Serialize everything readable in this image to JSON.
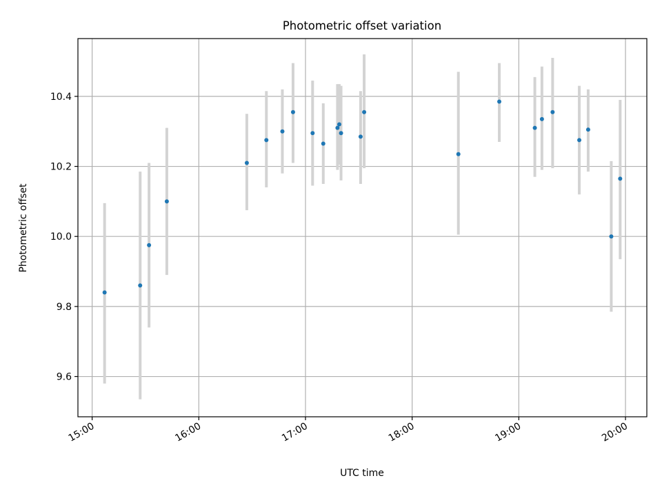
{
  "chart_data": {
    "type": "scatter",
    "title": "Photometric offset variation",
    "xlabel": "UTC time",
    "ylabel": "Photometric offset",
    "x_ticks": [
      "15:00",
      "16:00",
      "17:00",
      "18:00",
      "19:00",
      "20:00"
    ],
    "y_ticks": [
      "9.6",
      "9.8",
      "10.0",
      "10.2",
      "10.4"
    ],
    "xlim": [
      "14:52",
      "20:12"
    ],
    "ylim": [
      9.485,
      10.565
    ],
    "grid": true,
    "colors": {
      "point": "#1f77b4",
      "errorbar": "#d3d3d3"
    },
    "points": [
      {
        "x": "15:07",
        "y": 9.84,
        "ylow": 9.58,
        "yhigh": 10.095
      },
      {
        "x": "15:27",
        "y": 9.86,
        "ylow": 9.535,
        "yhigh": 10.185
      },
      {
        "x": "15:32",
        "y": 9.975,
        "ylow": 9.74,
        "yhigh": 10.21
      },
      {
        "x": "15:42",
        "y": 10.1,
        "ylow": 9.89,
        "yhigh": 10.31
      },
      {
        "x": "16:27",
        "y": 10.21,
        "ylow": 10.075,
        "yhigh": 10.35
      },
      {
        "x": "16:38",
        "y": 10.275,
        "ylow": 10.14,
        "yhigh": 10.415
      },
      {
        "x": "16:47",
        "y": 10.3,
        "ylow": 10.18,
        "yhigh": 10.42
      },
      {
        "x": "16:53",
        "y": 10.355,
        "ylow": 10.21,
        "yhigh": 10.495
      },
      {
        "x": "17:04",
        "y": 10.295,
        "ylow": 10.145,
        "yhigh": 10.445
      },
      {
        "x": "17:10",
        "y": 10.265,
        "ylow": 10.15,
        "yhigh": 10.38
      },
      {
        "x": "17:18",
        "y": 10.31,
        "ylow": 10.19,
        "yhigh": 10.435
      },
      {
        "x": "17:19",
        "y": 10.32,
        "ylow": 10.205,
        "yhigh": 10.435
      },
      {
        "x": "17:20",
        "y": 10.295,
        "ylow": 10.16,
        "yhigh": 10.43
      },
      {
        "x": "17:31",
        "y": 10.285,
        "ylow": 10.15,
        "yhigh": 10.415
      },
      {
        "x": "17:33",
        "y": 10.355,
        "ylow": 10.195,
        "yhigh": 10.52
      },
      {
        "x": "18:26",
        "y": 10.235,
        "ylow": 10.005,
        "yhigh": 10.47
      },
      {
        "x": "18:49",
        "y": 10.385,
        "ylow": 10.27,
        "yhigh": 10.495
      },
      {
        "x": "19:09",
        "y": 10.31,
        "ylow": 10.17,
        "yhigh": 10.455
      },
      {
        "x": "19:13",
        "y": 10.335,
        "ylow": 10.19,
        "yhigh": 10.485
      },
      {
        "x": "19:19",
        "y": 10.355,
        "ylow": 10.195,
        "yhigh": 10.51
      },
      {
        "x": "19:34",
        "y": 10.275,
        "ylow": 10.12,
        "yhigh": 10.43
      },
      {
        "x": "19:39",
        "y": 10.305,
        "ylow": 10.185,
        "yhigh": 10.42
      },
      {
        "x": "19:52",
        "y": 10.0,
        "ylow": 9.785,
        "yhigh": 10.215
      },
      {
        "x": "19:57",
        "y": 10.165,
        "ylow": 9.935,
        "yhigh": 10.39
      }
    ]
  }
}
